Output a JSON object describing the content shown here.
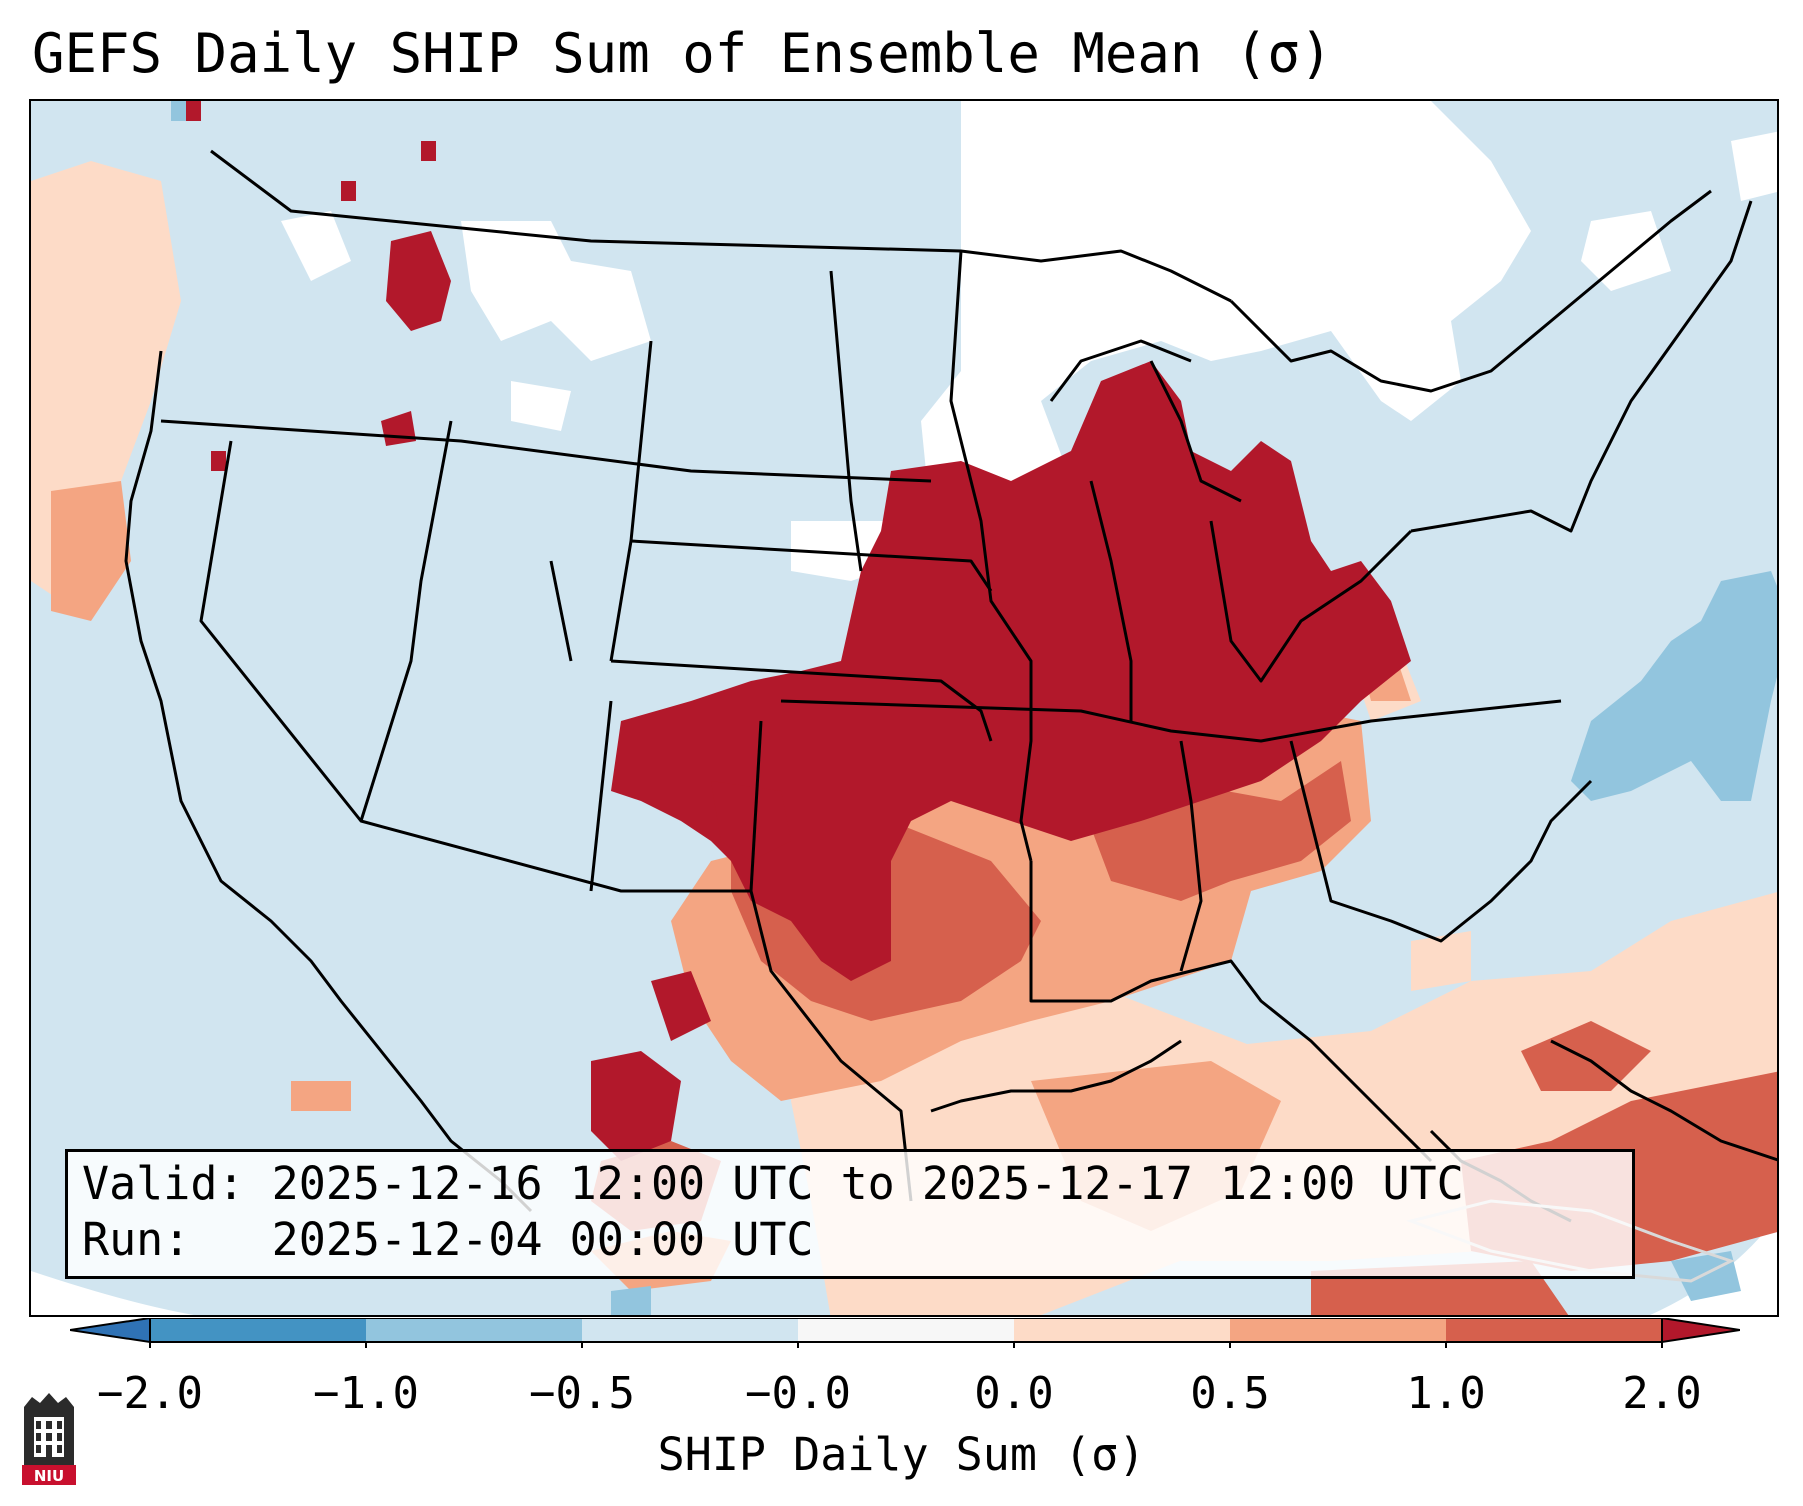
{
  "title": "GEFS Daily SHIP Sum of Ensemble Mean (σ)",
  "info": {
    "valid_label": "Valid:",
    "valid_value": "2025-12-16 12:00 UTC to 2025-12-17 12:00 UTC",
    "run_label": "Run:",
    "run_value": "2025-12-04 00:00 UTC"
  },
  "colorbar": {
    "label": "SHIP Daily Sum (σ)",
    "ticks": [
      "−2.0",
      "−1.0",
      "−0.5",
      "−0.0",
      "0.0",
      "0.5",
      "1.0",
      "2.0"
    ],
    "bins": [
      {
        "range": "< -2.0",
        "color": "#2f72b5"
      },
      {
        "range": "-2.0 to -1.0",
        "color": "#4393c3"
      },
      {
        "range": "-1.0 to -0.5",
        "color": "#92c5de"
      },
      {
        "range": "-0.5 to -0.0",
        "color": "#d1e5f0"
      },
      {
        "range": "-0.0 to 0.0",
        "color": "#f7f7f7"
      },
      {
        "range": "0.0 to 0.5",
        "color": "#fddbc7"
      },
      {
        "range": "0.5 to 1.0",
        "color": "#f4a582"
      },
      {
        "range": "1.0 to 2.0",
        "color": "#d6604d"
      },
      {
        "range": "> 2.0",
        "color": "#b2182b"
      }
    ]
  },
  "logo": {
    "text": "NIU",
    "name": "niu-logo"
  },
  "colors": {
    "ocean_light_blue": "#d1e5f0",
    "white_zone": "#ffffff",
    "light_salmon": "#fddbc7",
    "salmon": "#f4a582",
    "red_orange": "#d6604d",
    "dark_red": "#b2182b",
    "mid_blue": "#92c5de"
  }
}
